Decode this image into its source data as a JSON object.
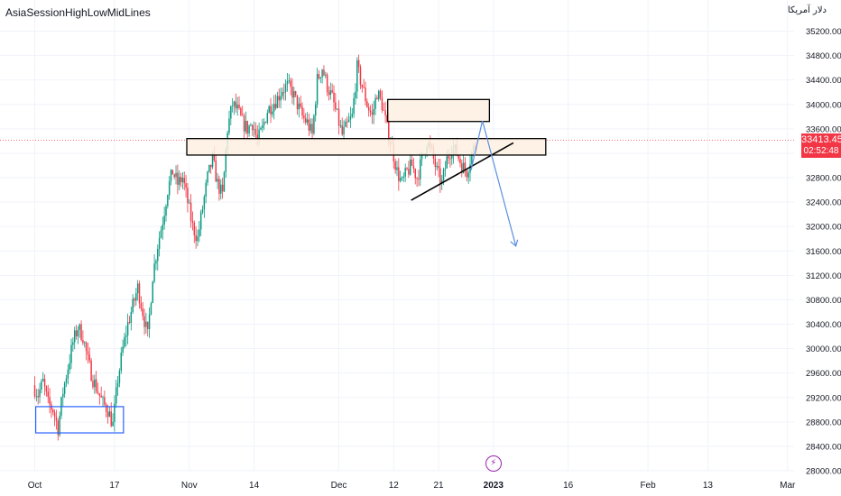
{
  "indicator_title": "AsiaSessionHighLowMidLines",
  "currency_label": "دلار آمریکا",
  "colors": {
    "up": "#089981",
    "down": "#f23645",
    "zone_fill": "#fdf0e0",
    "zone_stroke": "#000000",
    "blue": "#2962ff",
    "arrow": "#5b8fe0",
    "grid": "#f0f3fa",
    "axis_text": "#131722",
    "price_line": "#f23645"
  },
  "price_badge": {
    "price": "33413.45",
    "countdown": "02:52:48"
  },
  "chart_data": {
    "type": "candlestick",
    "ylim": [
      28000,
      35400
    ],
    "y_ticks": [
      35200,
      34800,
      34400,
      34000,
      33600,
      33200,
      32800,
      32400,
      32000,
      31600,
      31200,
      30800,
      30400,
      30000,
      29600,
      29200,
      28800,
      28400,
      28000
    ],
    "y_tick_labels": [
      "35200.00",
      "34800.00",
      "34400.00",
      "34000.00",
      "33600.00",
      "33200.00",
      "32800.00",
      "32400.00",
      "32000.00",
      "31600.00",
      "31200.00",
      "30800.00",
      "30400.00",
      "30000.00",
      "29600.00",
      "29200.00",
      "28800.00",
      "28400.00",
      "28000.00"
    ],
    "x_ticks": [
      {
        "label": "Oct",
        "day": 0
      },
      {
        "label": "17",
        "day": 16
      },
      {
        "label": "Nov",
        "day": 31
      },
      {
        "label": "14",
        "day": 44
      },
      {
        "label": "Dec",
        "day": 61
      },
      {
        "label": "12",
        "day": 72
      },
      {
        "label": "21",
        "day": 81
      },
      {
        "label": "2023",
        "day": 92
      },
      {
        "label": "16",
        "day": 107
      },
      {
        "label": "Feb",
        "day": 123
      },
      {
        "label": "13",
        "day": 135
      },
      {
        "label": "Mar",
        "day": 151
      }
    ],
    "current_price": 33413.45,
    "daily_closes": [
      [
        0,
        29400
      ],
      [
        1,
        29250
      ],
      [
        2,
        29450
      ],
      [
        3,
        29100
      ],
      [
        4,
        29000
      ],
      [
        5,
        28700
      ],
      [
        6,
        29300
      ],
      [
        7,
        29700
      ],
      [
        8,
        30100
      ],
      [
        9,
        30350
      ],
      [
        10,
        30200
      ],
      [
        11,
        29800
      ],
      [
        12,
        29500
      ],
      [
        13,
        29300
      ],
      [
        14,
        29100
      ],
      [
        15,
        29000
      ],
      [
        16,
        28750
      ],
      [
        17,
        29500
      ],
      [
        18,
        30000
      ],
      [
        19,
        30400
      ],
      [
        20,
        30700
      ],
      [
        21,
        31000
      ],
      [
        22,
        30600
      ],
      [
        23,
        30200
      ],
      [
        24,
        31200
      ],
      [
        25,
        31700
      ],
      [
        26,
        32100
      ],
      [
        27,
        32600
      ],
      [
        28,
        32900
      ],
      [
        29,
        32700
      ],
      [
        30,
        32800
      ],
      [
        31,
        32400
      ],
      [
        32,
        32000
      ],
      [
        33,
        31800
      ],
      [
        34,
        32300
      ],
      [
        35,
        32800
      ],
      [
        36,
        33100
      ],
      [
        37,
        32700
      ],
      [
        38,
        32500
      ],
      [
        39,
        33600
      ],
      [
        40,
        34000
      ],
      [
        41,
        33900
      ],
      [
        42,
        33700
      ],
      [
        43,
        33600
      ],
      [
        44,
        33700
      ],
      [
        45,
        33400
      ],
      [
        46,
        33600
      ],
      [
        47,
        33900
      ],
      [
        48,
        34000
      ],
      [
        49,
        34100
      ],
      [
        50,
        34250
      ],
      [
        51,
        34300
      ],
      [
        52,
        34200
      ],
      [
        53,
        34000
      ],
      [
        54,
        33800
      ],
      [
        55,
        33700
      ],
      [
        56,
        33500
      ],
      [
        57,
        34400
      ],
      [
        58,
        34600
      ],
      [
        59,
        34300
      ],
      [
        60,
        34100
      ],
      [
        61,
        33800
      ],
      [
        62,
        33500
      ],
      [
        63,
        33650
      ],
      [
        64,
        33800
      ],
      [
        65,
        34600
      ],
      [
        66,
        34300
      ],
      [
        67,
        34000
      ],
      [
        68,
        33800
      ],
      [
        69,
        34200
      ],
      [
        70,
        34000
      ],
      [
        71,
        33600
      ],
      [
        72,
        33300
      ],
      [
        73,
        32900
      ],
      [
        74,
        32700
      ],
      [
        75,
        32900
      ],
      [
        76,
        33000
      ],
      [
        77,
        32800
      ],
      [
        78,
        33100
      ],
      [
        79,
        33400
      ],
      [
        80,
        33200
      ],
      [
        81,
        32900
      ],
      [
        82,
        32700
      ],
      [
        83,
        33100
      ],
      [
        84,
        33300
      ],
      [
        85,
        33200
      ],
      [
        86,
        33000
      ],
      [
        87,
        32900
      ],
      [
        88,
        33200
      ],
      [
        89,
        33413
      ]
    ],
    "zones": [
      {
        "name": "upper-resistance",
        "x1_day": 70.8,
        "x2_day": 91.2,
        "y_top": 34080,
        "y_bottom": 33720
      },
      {
        "name": "middle-resistance",
        "x1_day": 30.5,
        "x2_day": 102.5,
        "y_top": 33440,
        "y_bottom": 33170
      },
      {
        "name": "october-support",
        "x1_day": 0.2,
        "x2_day": 17.8,
        "y_top": 29050,
        "y_bottom": 28620
      }
    ],
    "trendline": {
      "from": [
        75.5,
        32430
      ],
      "to": [
        96.0,
        33370
      ]
    },
    "projection": [
      [
        87.5,
        32920
      ],
      [
        89.8,
        33730
      ],
      [
        96.5,
        31680
      ]
    ]
  }
}
